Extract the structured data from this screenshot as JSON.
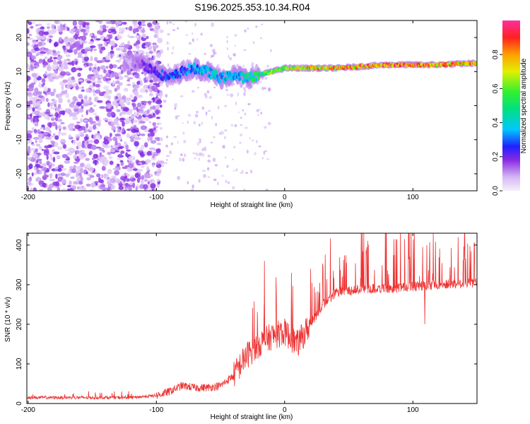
{
  "title": "S196.2025.353.10.34.R04",
  "chart_data": [
    {
      "type": "heatmap",
      "title": "S196.2025.353.10.34.R04",
      "xlabel": "Height of straight line (km)",
      "ylabel": "Frequency (Hz)",
      "xlim": [
        -201,
        150
      ],
      "ylim": [
        -25,
        25
      ],
      "x_ticks": [
        -200,
        -100,
        0,
        100
      ],
      "y_ticks": [
        -20,
        -10,
        0,
        10,
        20
      ],
      "x_tick_labels": [
        "-200",
        "-100",
        "0",
        "100"
      ],
      "y_tick_labels": [
        "-20",
        "-10",
        "0",
        "10",
        "20"
      ],
      "colorbar": {
        "label": "Normalized spectral amplitude",
        "range": [
          0,
          1
        ],
        "ticks": [
          0.0,
          0.2,
          0.4,
          0.6,
          0.8
        ],
        "tick_labels": [
          "0.0",
          "0.2",
          "0.4",
          "0.6",
          "0.8"
        ]
      },
      "ridge": {
        "description": "dominant frequency ridge",
        "x": [
          -120,
          -110,
          -100,
          -90,
          -80,
          -70,
          -60,
          -50,
          -40,
          -30,
          -20,
          -10,
          0,
          20,
          40,
          60,
          80,
          100,
          120,
          150
        ],
        "y": [
          13,
          12,
          10,
          8,
          10,
          11,
          10,
          8,
          9,
          8,
          9,
          10,
          11,
          11,
          11,
          11.5,
          12,
          12,
          12,
          12.5
        ],
        "amplitude": [
          0.1,
          0.2,
          0.25,
          0.3,
          0.3,
          0.35,
          0.4,
          0.4,
          0.35,
          0.45,
          0.55,
          0.6,
          0.65,
          0.8,
          0.85,
          0.85,
          0.9,
          0.9,
          0.85,
          0.8
        ]
      },
      "noise_region_x": [
        -201,
        -100
      ]
    },
    {
      "type": "line",
      "xlabel": "Height of straight line (km)",
      "ylabel": "SNR (10 * v/v)",
      "xlim": [
        -201,
        150
      ],
      "ylim": [
        0,
        430
      ],
      "x_ticks": [
        -200,
        -100,
        0,
        100
      ],
      "y_ticks": [
        0,
        100,
        200,
        300,
        400
      ],
      "x_tick_labels": [
        "-200",
        "-100",
        "0",
        "100"
      ],
      "y_tick_labels": [
        "0",
        "100",
        "200",
        "300",
        "400"
      ],
      "series": [
        {
          "name": "SNR",
          "color": "#ee3333",
          "envelope_x": [
            -201,
            -120,
            -100,
            -90,
            -80,
            -70,
            -60,
            -50,
            -40,
            -30,
            -20,
            -10,
            0,
            10,
            20,
            30,
            40,
            60,
            80,
            100,
            120,
            150
          ],
          "envelope_y": [
            15,
            15,
            20,
            30,
            45,
            40,
            40,
            45,
            70,
            120,
            150,
            170,
            180,
            150,
            200,
            250,
            280,
            290,
            290,
            295,
            300,
            305
          ],
          "spikes": [
            {
              "x": -16,
              "y": 360
            },
            {
              "x": 5,
              "y": 330
            },
            {
              "x": 20,
              "y": 340
            },
            {
              "x": 85,
              "y": 415
            },
            {
              "x": 135,
              "y": 420
            },
            {
              "x": 109,
              "y": 200
            }
          ]
        }
      ]
    }
  ]
}
